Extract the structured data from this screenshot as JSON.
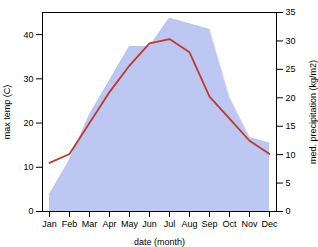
{
  "chart_data": {
    "type": "line",
    "categories": [
      "Jan",
      "Feb",
      "Mar",
      "Apr",
      "May",
      "Jun",
      "Jul",
      "Aug",
      "Sep",
      "Oct",
      "Nov",
      "Dec"
    ],
    "xlabel": "date (month)",
    "ylabel": "max temp (C)",
    "y2label": "med. precipitation (kg/m2)",
    "ylim": [
      0,
      45
    ],
    "yticks": [
      0,
      10,
      20,
      30,
      40
    ],
    "y2lim": [
      0,
      35
    ],
    "y2ticks": [
      0,
      5,
      10,
      15,
      20,
      25,
      30,
      35
    ],
    "grid": false,
    "series": [
      {
        "type": "line",
        "color": "#c0392b",
        "values": [
          11,
          13,
          20,
          27,
          33,
          38,
          39,
          36,
          26,
          21,
          16,
          13
        ]
      },
      {
        "type": "area",
        "axis": "y2",
        "color": "#b0bef0",
        "values": [
          3,
          9,
          17,
          23,
          29,
          29,
          34,
          33,
          32,
          20,
          13,
          12
        ]
      }
    ]
  }
}
